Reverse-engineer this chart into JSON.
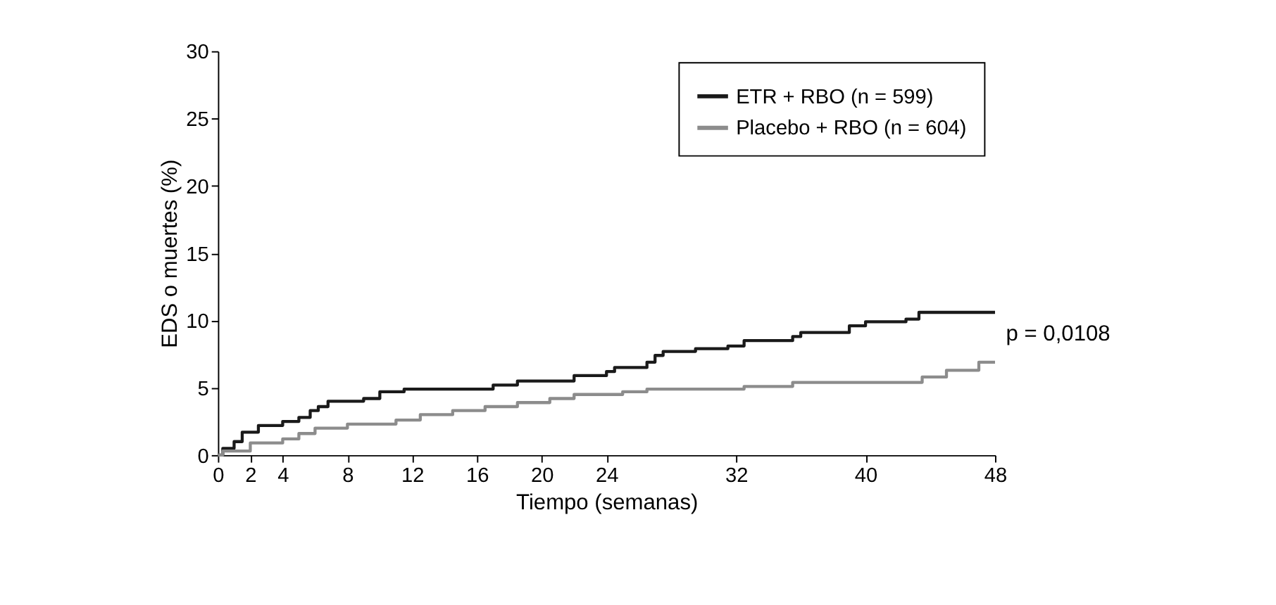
{
  "chart_data": {
    "type": "step",
    "xlabel": "Tiempo (semanas)",
    "ylabel": "EDS o muertes (%)",
    "xlim": [
      0,
      48
    ],
    "xticks": [
      0,
      2,
      4,
      8,
      12,
      16,
      20,
      24,
      32,
      40,
      48
    ],
    "ylim": [
      0,
      30
    ],
    "yticks": [
      0,
      5,
      10,
      15,
      20,
      25,
      30
    ],
    "grid": false,
    "legend": "top right",
    "marker": "none",
    "line_style": "solid",
    "annotations": [
      "p = 0,0108"
    ],
    "series": [
      {
        "name": "ETR + RBO (n = 599)",
        "color": "#1a1a1a",
        "x": [
          0,
          0.3,
          1,
          1.5,
          2.5,
          4,
          5,
          5.7,
          6.2,
          6.8,
          9,
          10,
          11.5,
          17,
          18.5,
          22,
          24,
          24.5,
          26.5,
          27,
          27.5,
          29.5,
          31.5,
          32.5,
          35.5,
          36,
          39,
          40,
          42.5,
          43.3,
          48
        ],
        "values": [
          0,
          0.5,
          1,
          1.7,
          2.2,
          2.5,
          2.8,
          3.3,
          3.6,
          4,
          4.2,
          4.7,
          4.9,
          5.2,
          5.5,
          5.9,
          6.2,
          6.5,
          6.9,
          7.4,
          7.7,
          7.9,
          8.1,
          8.5,
          8.8,
          9.1,
          9.6,
          9.9,
          10.1,
          10.6,
          10.6
        ]
      },
      {
        "name": "Placebo + RBO (n = 604)",
        "color": "#8c8c8c",
        "x": [
          0,
          0.3,
          2,
          4,
          5,
          6,
          8,
          11,
          12.5,
          14.5,
          16.5,
          18.5,
          20.5,
          22,
          25,
          26.5,
          32.5,
          35.5,
          43.5,
          45,
          47,
          48
        ],
        "values": [
          0,
          0.3,
          0.9,
          1.2,
          1.6,
          2.0,
          2.3,
          2.6,
          3.0,
          3.3,
          3.6,
          3.9,
          4.2,
          4.5,
          4.7,
          4.9,
          5.1,
          5.4,
          5.8,
          6.3,
          6.9,
          6.9
        ]
      }
    ]
  }
}
